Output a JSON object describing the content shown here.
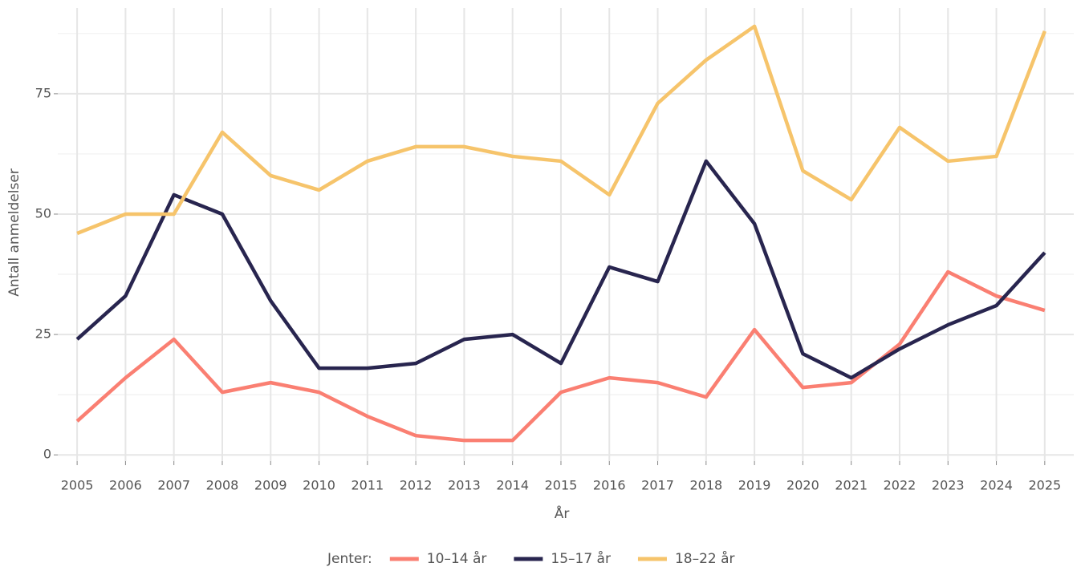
{
  "chart_data": {
    "type": "line",
    "x": [
      2005,
      2006,
      2007,
      2008,
      2009,
      2010,
      2011,
      2012,
      2013,
      2014,
      2015,
      2016,
      2017,
      2018,
      2019,
      2020,
      2021,
      2022,
      2023,
      2024,
      2025
    ],
    "series": [
      {
        "name": "10–14 år",
        "color": "#fa7f72",
        "values": [
          7,
          16,
          24,
          13,
          15,
          13,
          8,
          4,
          3,
          3,
          13,
          16,
          15,
          12,
          26,
          14,
          15,
          23,
          38,
          33,
          30
        ]
      },
      {
        "name": "15–17 år",
        "color": "#28254f",
        "values": [
          24,
          33,
          54,
          50,
          32,
          18,
          18,
          19,
          24,
          25,
          19,
          39,
          36,
          61,
          48,
          21,
          16,
          22,
          27,
          31,
          42
        ]
      },
      {
        "name": "18–22 år",
        "color": "#f6c46b",
        "values": [
          46,
          50,
          50,
          67,
          58,
          55,
          61,
          64,
          64,
          62,
          61,
          54,
          73,
          82,
          89,
          59,
          53,
          68,
          61,
          62,
          88
        ]
      }
    ],
    "xlabel": "År",
    "ylabel": "Antall anmeldelser",
    "legend_title": "Jenter:",
    "xlim": [
      2004.6,
      2025.6
    ],
    "ylim": [
      -1.3,
      92.8
    ],
    "xticks": [
      2005,
      2006,
      2007,
      2008,
      2009,
      2010,
      2011,
      2012,
      2013,
      2014,
      2015,
      2016,
      2017,
      2018,
      2019,
      2020,
      2021,
      2022,
      2023,
      2024,
      2025
    ],
    "yticks": [
      0,
      25,
      50,
      75
    ],
    "grid": true,
    "legend": "bottom"
  }
}
